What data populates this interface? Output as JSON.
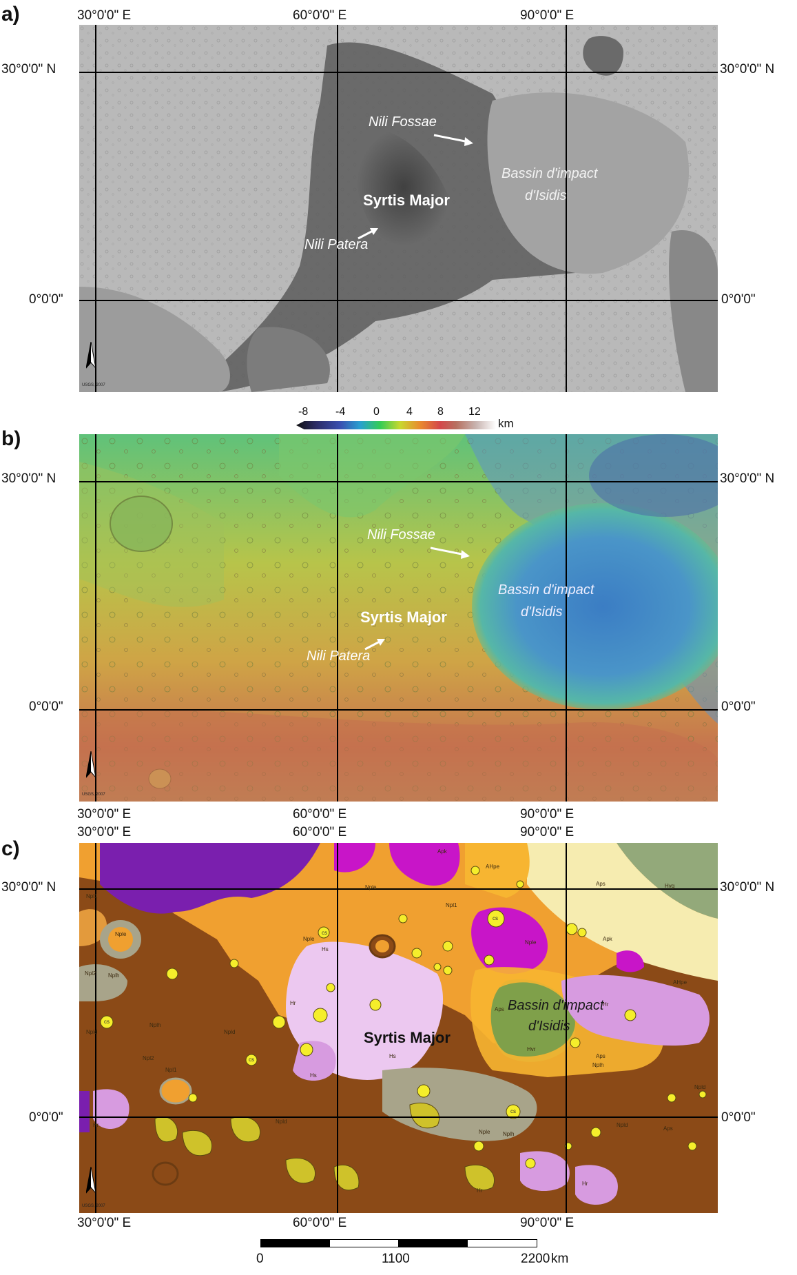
{
  "panels": {
    "a": {
      "letter": "a)"
    },
    "b": {
      "letter": "b)"
    },
    "c": {
      "letter": "c)"
    }
  },
  "coords": {
    "lon30": "30°0'0\" E",
    "lon60": "60°0'0\" E",
    "lon90": "90°0'0\" E",
    "lat30": "30°0'0\" N",
    "lat0": "0°0'0\""
  },
  "labels": {
    "nili_fossae": "Nili Fossae",
    "bassin_1": "Bassin d'impact",
    "bassin_2": "d'Isidis",
    "syrtis_major": "Syrtis Major",
    "nili_patera": "Nili Patera",
    "usgs": "USGS, 2007"
  },
  "colorbar": {
    "ticks": [
      "-8",
      "-4",
      "0",
      "4",
      "8",
      "12"
    ],
    "unit": "km"
  },
  "scalebar": {
    "ticks": [
      "0",
      "1100",
      "2200"
    ],
    "unit": "km"
  },
  "geo_units": {
    "nple": "Nple",
    "npl1": "Npl1",
    "npl2": "Npl2",
    "nplh": "Nplh",
    "npld": "Npld",
    "hs": "Hs",
    "hr": "Hr",
    "hvr": "Hvr",
    "hvg": "Hvg",
    "aps": "Aps",
    "apk": "Apk",
    "ahpe": "AHpe",
    "cs": "cs"
  },
  "colors": {
    "npld": "#8b4a17",
    "nple": "#f0a030",
    "npl1": "#e39a3c",
    "nplh": "#a8a48a",
    "hs": "#ecc8f0",
    "hr": "#d79be0",
    "hvr": "#7fa04a",
    "hvg": "#93a97a",
    "aps": "#f7b531",
    "apk": "#f6ecb0",
    "purple": "#7a1fae",
    "magenta": "#c815c8",
    "cs": "#f5ee2b",
    "csdark": "#cfc22a"
  }
}
